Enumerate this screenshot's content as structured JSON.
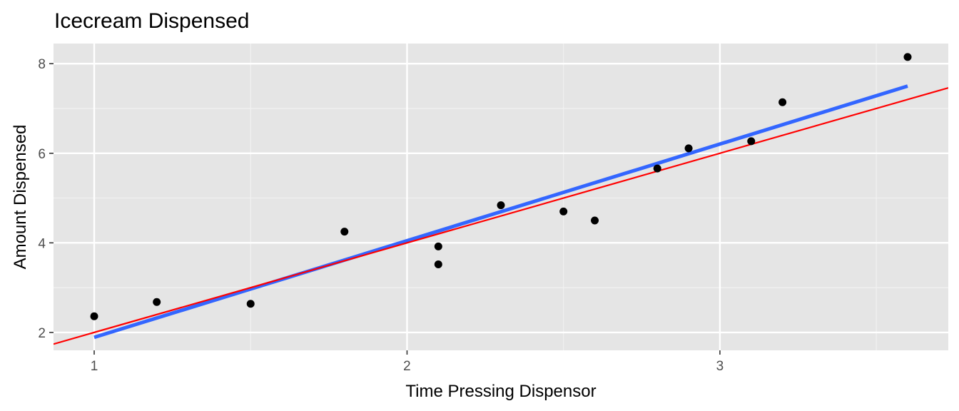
{
  "chart_data": {
    "type": "scatter",
    "title": "Icecream Dispensed",
    "xlabel": "Time Pressing Dispensor",
    "ylabel": "Amount Dispensed",
    "xlim": [
      0.87,
      3.73
    ],
    "ylim": [
      1.6,
      8.45
    ],
    "x_ticks": [
      1,
      2,
      3
    ],
    "x_minor": [
      1.5,
      2.5,
      3.5
    ],
    "y_ticks": [
      2,
      4,
      6,
      8
    ],
    "y_minor": [
      3,
      5,
      7
    ],
    "grid": true,
    "background": "#e5e5e5",
    "points": [
      {
        "x": 1.0,
        "y": 2.36
      },
      {
        "x": 1.2,
        "y": 2.68
      },
      {
        "x": 1.5,
        "y": 2.64
      },
      {
        "x": 1.8,
        "y": 4.25
      },
      {
        "x": 2.1,
        "y": 3.92
      },
      {
        "x": 2.1,
        "y": 3.52
      },
      {
        "x": 2.3,
        "y": 4.84
      },
      {
        "x": 2.5,
        "y": 4.7
      },
      {
        "x": 2.6,
        "y": 4.5
      },
      {
        "x": 2.8,
        "y": 5.66
      },
      {
        "x": 2.9,
        "y": 6.11
      },
      {
        "x": 3.1,
        "y": 6.27
      },
      {
        "x": 3.2,
        "y": 7.14
      },
      {
        "x": 3.6,
        "y": 8.15
      }
    ],
    "point_color": "#000000",
    "lines": [
      {
        "kind": "fitted-regression",
        "color": "#3366ff",
        "x": [
          1.0,
          3.6
        ],
        "y": [
          1.89,
          7.5
        ]
      },
      {
        "kind": "reference-line",
        "color": "#ff0000",
        "x": [
          0.87,
          3.73
        ],
        "y": [
          1.74,
          7.46
        ]
      }
    ]
  }
}
